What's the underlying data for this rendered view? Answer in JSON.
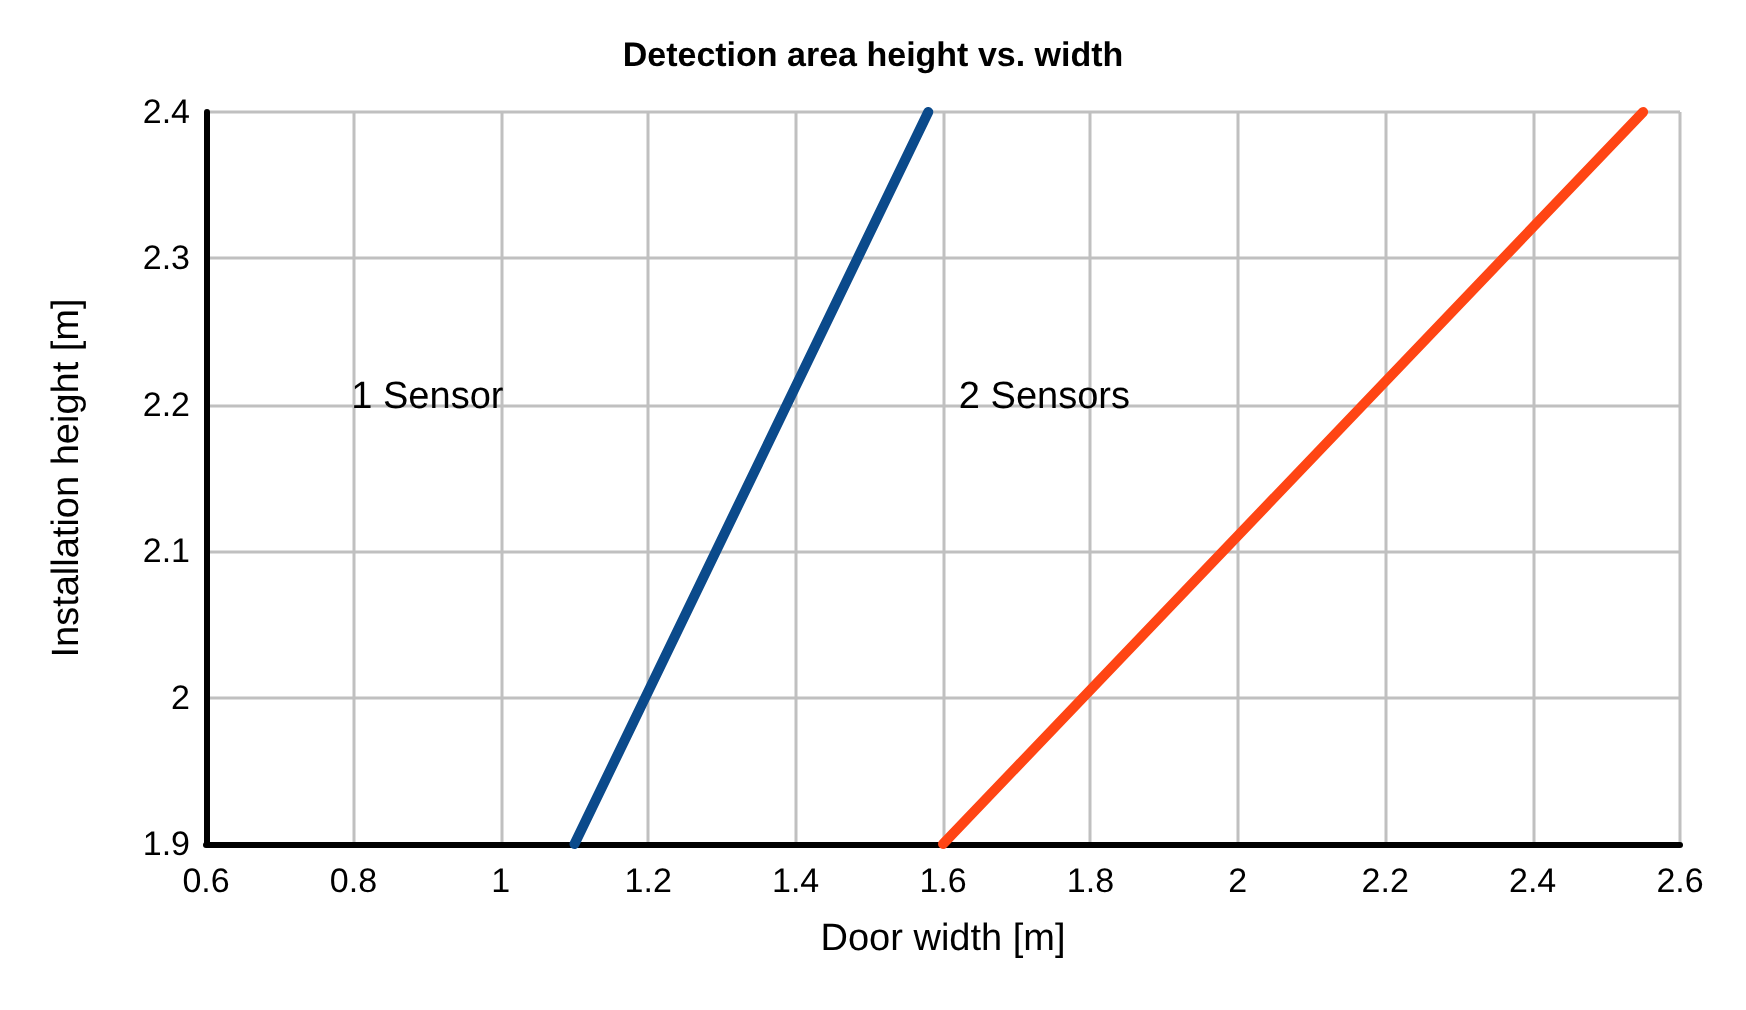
{
  "chart_data": {
    "type": "line",
    "title": "Detection area height vs. width",
    "xlabel": "Door width [m]",
    "ylabel": "Installation height [m]",
    "series": [
      {
        "color": "#0b4a8b",
        "x": [
          1.1,
          1.58
        ],
        "values": [
          1.9,
          2.4
        ]
      },
      {
        "color": "#ff4514",
        "x": [
          1.6,
          2.55
        ],
        "values": [
          1.9,
          2.4
        ]
      }
    ],
    "xlim": [
      0.6,
      2.6
    ],
    "xticks": [
      0.6,
      0.8,
      1,
      1.2,
      1.4,
      1.6,
      1.8,
      2,
      2.2,
      2.4,
      2.6
    ],
    "ylim": [
      1.9,
      2.4
    ],
    "yticks": [
      1.9,
      2,
      2.1,
      2.2,
      2.3,
      2.4
    ],
    "grid": true,
    "marker": "none",
    "line_style": "solid",
    "annotations": [
      "1 Sensor",
      "2 Sensors"
    ]
  }
}
